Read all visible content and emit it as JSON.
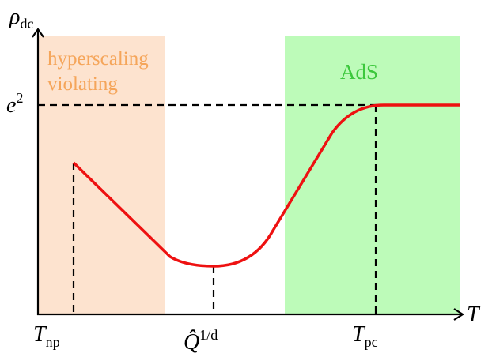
{
  "axes": {
    "y_label": {
      "base": "ρ",
      "sub": "dc"
    },
    "x_label": "T"
  },
  "levels": [
    {
      "base": "e",
      "sup": "2"
    }
  ],
  "markers": [
    {
      "base": "T",
      "sub": "np"
    },
    {
      "base": "Q̂",
      "sup": "1/d"
    },
    {
      "base": "T",
      "sub": "pc"
    }
  ],
  "regions": [
    {
      "lines": [
        "hyperscaling",
        "violating"
      ]
    },
    {
      "lines": [
        "AdS"
      ]
    }
  ]
}
